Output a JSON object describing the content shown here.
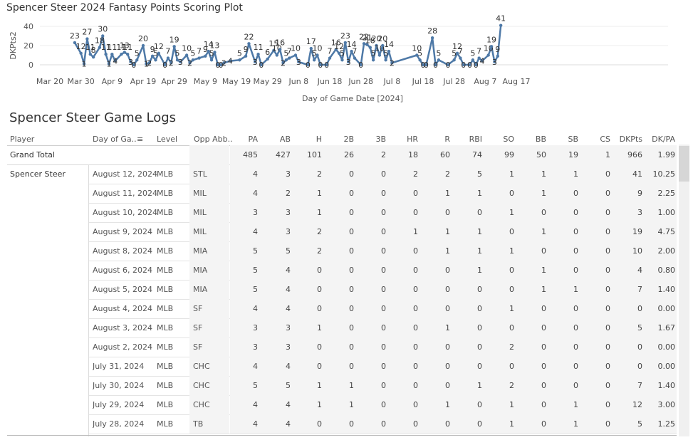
{
  "chart": {
    "title": "Spencer Steer 2024 Fantasy Points Scoring Plot"
  },
  "chart_data": {
    "type": "line",
    "title": "Spencer Steer 2024 Fantasy Points Scoring Plot",
    "xlabel": "Day of Game Date [2024]",
    "ylabel": "DKPts2",
    "ylim": [
      0,
      40
    ],
    "y_ticks": [
      "0",
      "20",
      "40"
    ],
    "x_ticks": [
      "Mar 20",
      "Mar 30",
      "Apr 9",
      "Apr 19",
      "Apr 29",
      "May 9",
      "May 19",
      "May 29",
      "Jun 8",
      "Jun 18",
      "Jun 28",
      "Jul 8",
      "Jul 18",
      "Jul 28",
      "Aug 7",
      "Aug 17"
    ],
    "points": [
      {
        "x": "Mar 28",
        "y": 23
      },
      {
        "x": "Mar 30",
        "y": 12
      },
      {
        "x": "Mar 31",
        "y": 1
      },
      {
        "x": "Apr 1",
        "y": 27
      },
      {
        "x": "Apr 2",
        "y": 11
      },
      {
        "x": "Apr 3",
        "y": 8
      },
      {
        "x": "Apr 5",
        "y": 18
      },
      {
        "x": "Apr 6",
        "y": 30
      },
      {
        "x": "Apr 7",
        "y": 11
      },
      {
        "x": "Apr 8",
        "y": 1
      },
      {
        "x": "Apr 9",
        "y": 11
      },
      {
        "x": "Apr 10",
        "y": 4
      },
      {
        "x": "Apr 12",
        "y": 11
      },
      {
        "x": "Apr 13",
        "y": 13
      },
      {
        "x": "Apr 14",
        "y": 11
      },
      {
        "x": "Apr 15",
        "y": 3
      },
      {
        "x": "Apr 16",
        "y": 0
      },
      {
        "x": "Apr 17",
        "y": 5
      },
      {
        "x": "Apr 19",
        "y": 20
      },
      {
        "x": "Apr 20",
        "y": 1
      },
      {
        "x": "Apr 21",
        "y": 2
      },
      {
        "x": "Apr 22",
        "y": 9
      },
      {
        "x": "Apr 23",
        "y": 5
      },
      {
        "x": "Apr 24",
        "y": 12
      },
      {
        "x": "Apr 26",
        "y": 0
      },
      {
        "x": "Apr 27",
        "y": 7
      },
      {
        "x": "Apr 28",
        "y": 2
      },
      {
        "x": "Apr 29",
        "y": 19
      },
      {
        "x": "Apr 30",
        "y": 5
      },
      {
        "x": "May 1",
        "y": 3
      },
      {
        "x": "May 3",
        "y": 10
      },
      {
        "x": "May 4",
        "y": 2
      },
      {
        "x": "May 5",
        "y": 5
      },
      {
        "x": "May 7",
        "y": 7
      },
      {
        "x": "May 9",
        "y": 9
      },
      {
        "x": "May 10",
        "y": 14
      },
      {
        "x": "May 11",
        "y": 5
      },
      {
        "x": "May 12",
        "y": 13
      },
      {
        "x": "May 13",
        "y": 0
      },
      {
        "x": "May 14",
        "y": 0
      },
      {
        "x": "May 15",
        "y": 2
      },
      {
        "x": "May 17",
        "y": 4
      },
      {
        "x": "May 20",
        "y": 5
      },
      {
        "x": "May 22",
        "y": 9
      },
      {
        "x": "May 23",
        "y": 22
      },
      {
        "x": "May 25",
        "y": 3
      },
      {
        "x": "May 26",
        "y": 11
      },
      {
        "x": "May 27",
        "y": 0
      },
      {
        "x": "May 29",
        "y": 6
      },
      {
        "x": "May 31",
        "y": 15
      },
      {
        "x": "Jun 1",
        "y": 10
      },
      {
        "x": "Jun 2",
        "y": 16
      },
      {
        "x": "Jun 3",
        "y": 2
      },
      {
        "x": "Jun 4",
        "y": 5
      },
      {
        "x": "Jun 5",
        "y": 7
      },
      {
        "x": "Jun 7",
        "y": 10
      },
      {
        "x": "Jun 8",
        "y": 3
      },
      {
        "x": "Jun 11",
        "y": 0
      },
      {
        "x": "Jun 12",
        "y": 17
      },
      {
        "x": "Jun 13",
        "y": 5
      },
      {
        "x": "Jun 14",
        "y": 10
      },
      {
        "x": "Jun 15",
        "y": 0
      },
      {
        "x": "Jun 17",
        "y": 0
      },
      {
        "x": "Jun 18",
        "y": 7
      },
      {
        "x": "Jun 20",
        "y": 16
      },
      {
        "x": "Jun 21",
        "y": 12
      },
      {
        "x": "Jun 22",
        "y": 5
      },
      {
        "x": "Jun 23",
        "y": 23
      },
      {
        "x": "Jun 24",
        "y": 3
      },
      {
        "x": "Jun 25",
        "y": 14
      },
      {
        "x": "Jun 26",
        "y": 7
      },
      {
        "x": "Jun 28",
        "y": 0
      },
      {
        "x": "Jun 29",
        "y": 22
      },
      {
        "x": "Jun 30",
        "y": 21
      },
      {
        "x": "Jul 1",
        "y": 18
      },
      {
        "x": "Jul 2",
        "y": 5
      },
      {
        "x": "Jul 3",
        "y": 20
      },
      {
        "x": "Jul 4",
        "y": 10
      },
      {
        "x": "Jul 5",
        "y": 20
      },
      {
        "x": "Jul 6",
        "y": 5
      },
      {
        "x": "Jul 7",
        "y": 14
      },
      {
        "x": "Jul 8",
        "y": 2
      },
      {
        "x": "Jul 16",
        "y": 10
      },
      {
        "x": "Jul 17",
        "y": 5
      },
      {
        "x": "Jul 18",
        "y": 0
      },
      {
        "x": "Jul 19",
        "y": 0
      },
      {
        "x": "Jul 21",
        "y": 28
      },
      {
        "x": "Jul 22",
        "y": 0
      },
      {
        "x": "Jul 23",
        "y": 5
      },
      {
        "x": "Jul 26",
        "y": 0
      },
      {
        "x": "Jul 28",
        "y": 5
      },
      {
        "x": "Jul 29",
        "y": 12
      },
      {
        "x": "Jul 30",
        "y": 7
      },
      {
        "x": "Jul 31",
        "y": 0
      },
      {
        "x": "Aug 2",
        "y": 0
      },
      {
        "x": "Aug 3",
        "y": 5
      },
      {
        "x": "Aug 4",
        "y": 0
      },
      {
        "x": "Aug 5",
        "y": 7
      },
      {
        "x": "Aug 6",
        "y": 4
      },
      {
        "x": "Aug 8",
        "y": 10
      },
      {
        "x": "Aug 9",
        "y": 19
      },
      {
        "x": "Aug 10",
        "y": 3
      },
      {
        "x": "Aug 11",
        "y": 9
      },
      {
        "x": "Aug 12",
        "y": 41
      }
    ]
  },
  "table": {
    "title": "Spencer Steer Game Logs",
    "headers": {
      "player": "Player",
      "date": "Day of Ga..",
      "level": "Level",
      "opp": "Opp Abb..",
      "stats": [
        "PA",
        "AB",
        "H",
        "2B",
        "3B",
        "HR",
        "R",
        "RBI",
        "SO",
        "BB",
        "SB",
        "CS",
        "DKPts",
        "DK/PA"
      ]
    },
    "grand_total": {
      "label": "Grand Total",
      "values": [
        "485",
        "427",
        "101",
        "26",
        "2",
        "18",
        "60",
        "74",
        "99",
        "50",
        "19",
        "1",
        "966",
        "1.99"
      ]
    },
    "player_name": "Spencer Steer",
    "rows": [
      {
        "date": "August 12, 2024",
        "level": "MLB",
        "opp": "STL",
        "values": [
          "4",
          "3",
          "2",
          "0",
          "0",
          "2",
          "2",
          "5",
          "1",
          "1",
          "1",
          "0",
          "41",
          "10.25"
        ]
      },
      {
        "date": "August 11, 2024",
        "level": "MLB",
        "opp": "MIL",
        "values": [
          "4",
          "2",
          "1",
          "0",
          "0",
          "0",
          "1",
          "1",
          "0",
          "1",
          "0",
          "0",
          "9",
          "2.25"
        ]
      },
      {
        "date": "August 10, 2024",
        "level": "MLB",
        "opp": "MIL",
        "values": [
          "3",
          "3",
          "1",
          "0",
          "0",
          "0",
          "0",
          "0",
          "1",
          "0",
          "0",
          "0",
          "3",
          "1.00"
        ]
      },
      {
        "date": "August 9, 2024",
        "level": "MLB",
        "opp": "MIL",
        "values": [
          "4",
          "3",
          "2",
          "0",
          "0",
          "1",
          "1",
          "1",
          "0",
          "1",
          "0",
          "0",
          "19",
          "4.75"
        ]
      },
      {
        "date": "August 8, 2024",
        "level": "MLB",
        "opp": "MIA",
        "values": [
          "5",
          "5",
          "2",
          "0",
          "0",
          "0",
          "1",
          "1",
          "1",
          "0",
          "0",
          "0",
          "10",
          "2.00"
        ]
      },
      {
        "date": "August 6, 2024",
        "level": "MLB",
        "opp": "MIA",
        "values": [
          "5",
          "4",
          "0",
          "0",
          "0",
          "0",
          "0",
          "1",
          "0",
          "1",
          "0",
          "0",
          "4",
          "0.80"
        ]
      },
      {
        "date": "August 5, 2024",
        "level": "MLB",
        "opp": "MIA",
        "values": [
          "5",
          "4",
          "0",
          "0",
          "0",
          "0",
          "0",
          "0",
          "0",
          "1",
          "1",
          "0",
          "7",
          "1.40"
        ]
      },
      {
        "date": "August 4, 2024",
        "level": "MLB",
        "opp": "SF",
        "values": [
          "4",
          "4",
          "0",
          "0",
          "0",
          "0",
          "0",
          "0",
          "1",
          "0",
          "0",
          "0",
          "0",
          "0.00"
        ]
      },
      {
        "date": "August 3, 2024",
        "level": "MLB",
        "opp": "SF",
        "values": [
          "3",
          "3",
          "1",
          "0",
          "0",
          "0",
          "1",
          "0",
          "0",
          "0",
          "0",
          "0",
          "5",
          "1.67"
        ]
      },
      {
        "date": "August 2, 2024",
        "level": "MLB",
        "opp": "SF",
        "values": [
          "3",
          "3",
          "0",
          "0",
          "0",
          "0",
          "0",
          "0",
          "2",
          "0",
          "0",
          "0",
          "0",
          "0.00"
        ]
      },
      {
        "date": "July 31, 2024",
        "level": "MLB",
        "opp": "CHC",
        "values": [
          "4",
          "4",
          "0",
          "0",
          "0",
          "0",
          "0",
          "0",
          "0",
          "0",
          "0",
          "0",
          "0",
          "0.00"
        ]
      },
      {
        "date": "July 30, 2024",
        "level": "MLB",
        "opp": "CHC",
        "values": [
          "5",
          "5",
          "1",
          "1",
          "0",
          "0",
          "0",
          "1",
          "2",
          "0",
          "0",
          "0",
          "7",
          "1.40"
        ]
      },
      {
        "date": "July 29, 2024",
        "level": "MLB",
        "opp": "CHC",
        "values": [
          "4",
          "4",
          "1",
          "1",
          "0",
          "0",
          "1",
          "0",
          "1",
          "0",
          "1",
          "0",
          "12",
          "3.00"
        ]
      },
      {
        "date": "July 28, 2024",
        "level": "MLB",
        "opp": "TB",
        "values": [
          "4",
          "4",
          "0",
          "0",
          "0",
          "0",
          "0",
          "0",
          "1",
          "0",
          "1",
          "0",
          "5",
          "1.25"
        ]
      }
    ]
  },
  "colors": {
    "line": "#4e79a7",
    "shade": "#f4f4f4"
  }
}
